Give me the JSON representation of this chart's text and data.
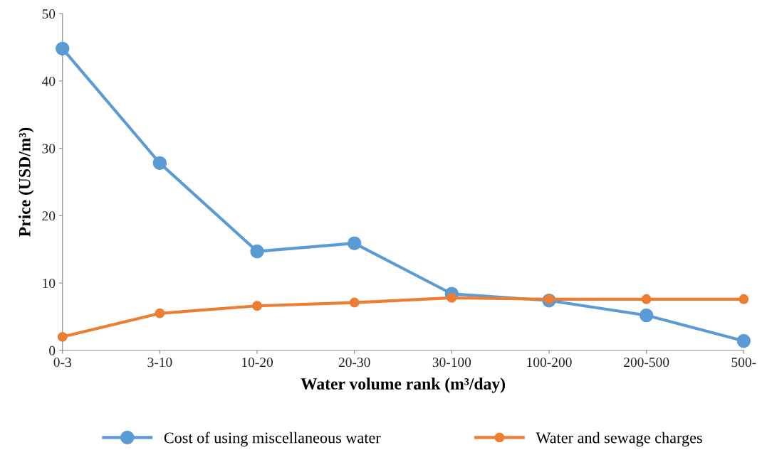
{
  "chart_data": {
    "type": "line",
    "xlabel": "Water volume rank (m³/day)",
    "ylabel": "Price (USD/m³)",
    "categories": [
      "0-3",
      "3-10",
      "10-20",
      "20-30",
      "30-100",
      "100-200",
      "200-500",
      "500-"
    ],
    "series": [
      {
        "name": "Cost of using miscellaneous water",
        "color": "#5b9bd5",
        "values": [
          44.8,
          27.8,
          14.7,
          15.9,
          8.4,
          7.4,
          5.2,
          1.4
        ]
      },
      {
        "name": "Water and sewage charges",
        "color": "#ed7d31",
        "values": [
          2.0,
          5.5,
          6.6,
          7.1,
          7.8,
          7.6,
          7.6,
          7.6
        ]
      }
    ],
    "ylim": [
      0,
      50
    ],
    "yticks": [
      0,
      10,
      20,
      30,
      40,
      50
    ],
    "grid": false,
    "legend": "bottom",
    "marker": "circle",
    "line_style": "solid"
  }
}
